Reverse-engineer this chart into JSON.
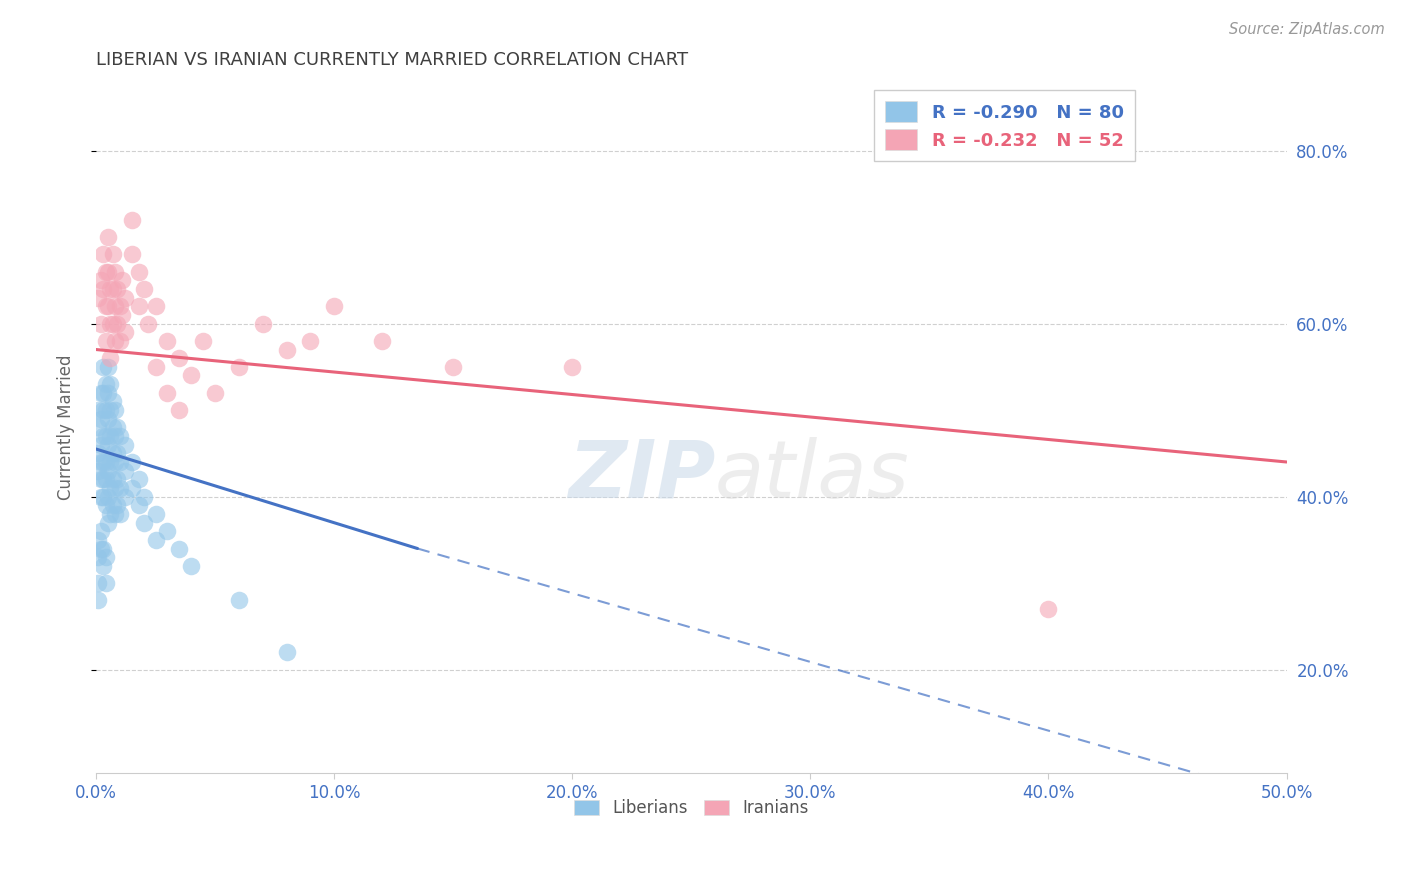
{
  "title": "LIBERIAN VS IRANIAN CURRENTLY MARRIED CORRELATION CHART",
  "source": "Source: ZipAtlas.com",
  "ylabel": "Currently Married",
  "ylabel_ticks": [
    "20.0%",
    "40.0%",
    "60.0%",
    "80.0%"
  ],
  "ylabel_values": [
    0.2,
    0.4,
    0.6,
    0.8
  ],
  "xlim": [
    0.0,
    0.5
  ],
  "ylim": [
    0.08,
    0.88
  ],
  "xtick_vals": [
    0.0,
    0.1,
    0.2,
    0.3,
    0.4,
    0.5
  ],
  "xtick_labels": [
    "0.0%",
    "10.0%",
    "20.0%",
    "30.0%",
    "40.0%",
    "50.0%"
  ],
  "legend_entries": [
    {
      "label": "R = -0.290   N = 80",
      "color": "#92c5e8"
    },
    {
      "label": "R = -0.232   N = 52",
      "color": "#f4a5b5"
    }
  ],
  "watermark": "ZIPatlas",
  "blue_scatter": [
    [
      0.001,
      0.5
    ],
    [
      0.001,
      0.48
    ],
    [
      0.001,
      0.45
    ],
    [
      0.001,
      0.43
    ],
    [
      0.002,
      0.52
    ],
    [
      0.002,
      0.49
    ],
    [
      0.002,
      0.46
    ],
    [
      0.002,
      0.44
    ],
    [
      0.002,
      0.42
    ],
    [
      0.002,
      0.4
    ],
    [
      0.003,
      0.55
    ],
    [
      0.003,
      0.52
    ],
    [
      0.003,
      0.5
    ],
    [
      0.003,
      0.47
    ],
    [
      0.003,
      0.44
    ],
    [
      0.003,
      0.42
    ],
    [
      0.003,
      0.4
    ],
    [
      0.004,
      0.53
    ],
    [
      0.004,
      0.5
    ],
    [
      0.004,
      0.47
    ],
    [
      0.004,
      0.44
    ],
    [
      0.004,
      0.42
    ],
    [
      0.004,
      0.39
    ],
    [
      0.005,
      0.55
    ],
    [
      0.005,
      0.52
    ],
    [
      0.005,
      0.49
    ],
    [
      0.005,
      0.46
    ],
    [
      0.005,
      0.43
    ],
    [
      0.005,
      0.4
    ],
    [
      0.005,
      0.37
    ],
    [
      0.006,
      0.53
    ],
    [
      0.006,
      0.5
    ],
    [
      0.006,
      0.47
    ],
    [
      0.006,
      0.44
    ],
    [
      0.006,
      0.41
    ],
    [
      0.006,
      0.38
    ],
    [
      0.007,
      0.51
    ],
    [
      0.007,
      0.48
    ],
    [
      0.007,
      0.45
    ],
    [
      0.007,
      0.42
    ],
    [
      0.007,
      0.39
    ],
    [
      0.008,
      0.5
    ],
    [
      0.008,
      0.47
    ],
    [
      0.008,
      0.44
    ],
    [
      0.008,
      0.41
    ],
    [
      0.008,
      0.38
    ],
    [
      0.009,
      0.48
    ],
    [
      0.009,
      0.45
    ],
    [
      0.009,
      0.42
    ],
    [
      0.009,
      0.39
    ],
    [
      0.01,
      0.47
    ],
    [
      0.01,
      0.44
    ],
    [
      0.01,
      0.41
    ],
    [
      0.01,
      0.38
    ],
    [
      0.012,
      0.46
    ],
    [
      0.012,
      0.43
    ],
    [
      0.012,
      0.4
    ],
    [
      0.015,
      0.44
    ],
    [
      0.015,
      0.41
    ],
    [
      0.018,
      0.42
    ],
    [
      0.018,
      0.39
    ],
    [
      0.02,
      0.4
    ],
    [
      0.02,
      0.37
    ],
    [
      0.025,
      0.38
    ],
    [
      0.025,
      0.35
    ],
    [
      0.03,
      0.36
    ],
    [
      0.035,
      0.34
    ],
    [
      0.04,
      0.32
    ],
    [
      0.001,
      0.35
    ],
    [
      0.001,
      0.33
    ],
    [
      0.002,
      0.36
    ],
    [
      0.002,
      0.34
    ],
    [
      0.003,
      0.34
    ],
    [
      0.003,
      0.32
    ],
    [
      0.004,
      0.33
    ],
    [
      0.004,
      0.3
    ],
    [
      0.06,
      0.28
    ],
    [
      0.08,
      0.22
    ],
    [
      0.001,
      0.3
    ],
    [
      0.001,
      0.28
    ]
  ],
  "pink_scatter": [
    [
      0.001,
      0.63
    ],
    [
      0.002,
      0.65
    ],
    [
      0.002,
      0.6
    ],
    [
      0.003,
      0.68
    ],
    [
      0.003,
      0.64
    ],
    [
      0.004,
      0.66
    ],
    [
      0.004,
      0.62
    ],
    [
      0.004,
      0.58
    ],
    [
      0.005,
      0.7
    ],
    [
      0.005,
      0.66
    ],
    [
      0.005,
      0.62
    ],
    [
      0.006,
      0.64
    ],
    [
      0.006,
      0.6
    ],
    [
      0.006,
      0.56
    ],
    [
      0.007,
      0.68
    ],
    [
      0.007,
      0.64
    ],
    [
      0.007,
      0.6
    ],
    [
      0.008,
      0.66
    ],
    [
      0.008,
      0.62
    ],
    [
      0.008,
      0.58
    ],
    [
      0.009,
      0.64
    ],
    [
      0.009,
      0.6
    ],
    [
      0.01,
      0.62
    ],
    [
      0.01,
      0.58
    ],
    [
      0.011,
      0.65
    ],
    [
      0.011,
      0.61
    ],
    [
      0.012,
      0.63
    ],
    [
      0.012,
      0.59
    ],
    [
      0.015,
      0.72
    ],
    [
      0.015,
      0.68
    ],
    [
      0.018,
      0.66
    ],
    [
      0.018,
      0.62
    ],
    [
      0.02,
      0.64
    ],
    [
      0.022,
      0.6
    ],
    [
      0.025,
      0.62
    ],
    [
      0.025,
      0.55
    ],
    [
      0.03,
      0.58
    ],
    [
      0.03,
      0.52
    ],
    [
      0.035,
      0.56
    ],
    [
      0.035,
      0.5
    ],
    [
      0.04,
      0.54
    ],
    [
      0.045,
      0.58
    ],
    [
      0.05,
      0.52
    ],
    [
      0.06,
      0.55
    ],
    [
      0.07,
      0.6
    ],
    [
      0.08,
      0.57
    ],
    [
      0.09,
      0.58
    ],
    [
      0.1,
      0.62
    ],
    [
      0.12,
      0.58
    ],
    [
      0.15,
      0.55
    ],
    [
      0.2,
      0.55
    ],
    [
      0.4,
      0.27
    ]
  ],
  "blue_line_solid": {
    "x": [
      0.0,
      0.135
    ],
    "y": [
      0.455,
      0.34
    ]
  },
  "blue_line_dash": {
    "x": [
      0.135,
      0.5
    ],
    "y": [
      0.34,
      0.05
    ]
  },
  "pink_line": {
    "x": [
      0.0,
      0.5
    ],
    "y": [
      0.57,
      0.44
    ]
  },
  "blue_color": "#92c5e8",
  "pink_color": "#f4a5b5",
  "blue_line_color": "#4472c4",
  "pink_line_color": "#e8637a",
  "background_color": "#ffffff",
  "grid_color": "#d0d0d0",
  "title_color": "#404040",
  "tick_label_color": "#4472c4",
  "source_color": "#999999"
}
